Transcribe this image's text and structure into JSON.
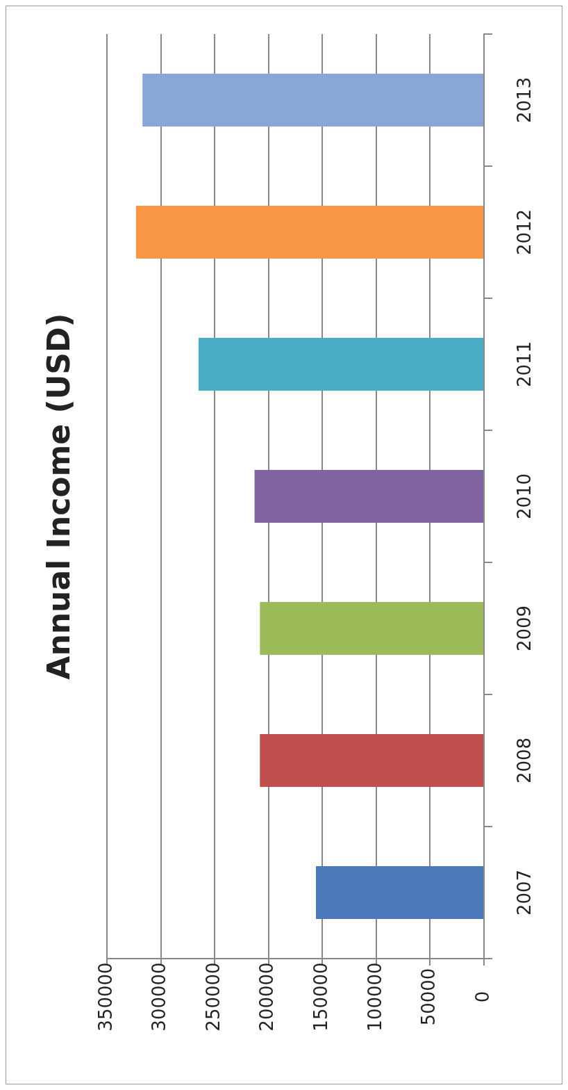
{
  "chart_data": {
    "type": "bar",
    "title": "Annual Income (USD)",
    "orientation": "horizontal",
    "categories": [
      "2013",
      "2012",
      "2011",
      "2010",
      "2009",
      "2008",
      "2007"
    ],
    "values": [
      317000,
      323000,
      265000,
      213000,
      208000,
      208000,
      156000
    ],
    "colors": [
      "#8aa6d6",
      "#f79646",
      "#4bacc6",
      "#8064a2",
      "#9bbb59",
      "#c0504d",
      "#4a78b8"
    ],
    "xlim": [
      350000,
      0
    ],
    "xticks": [
      350000,
      300000,
      250000,
      200000,
      150000,
      100000,
      50000,
      0
    ],
    "grid": "x",
    "legend": false
  }
}
